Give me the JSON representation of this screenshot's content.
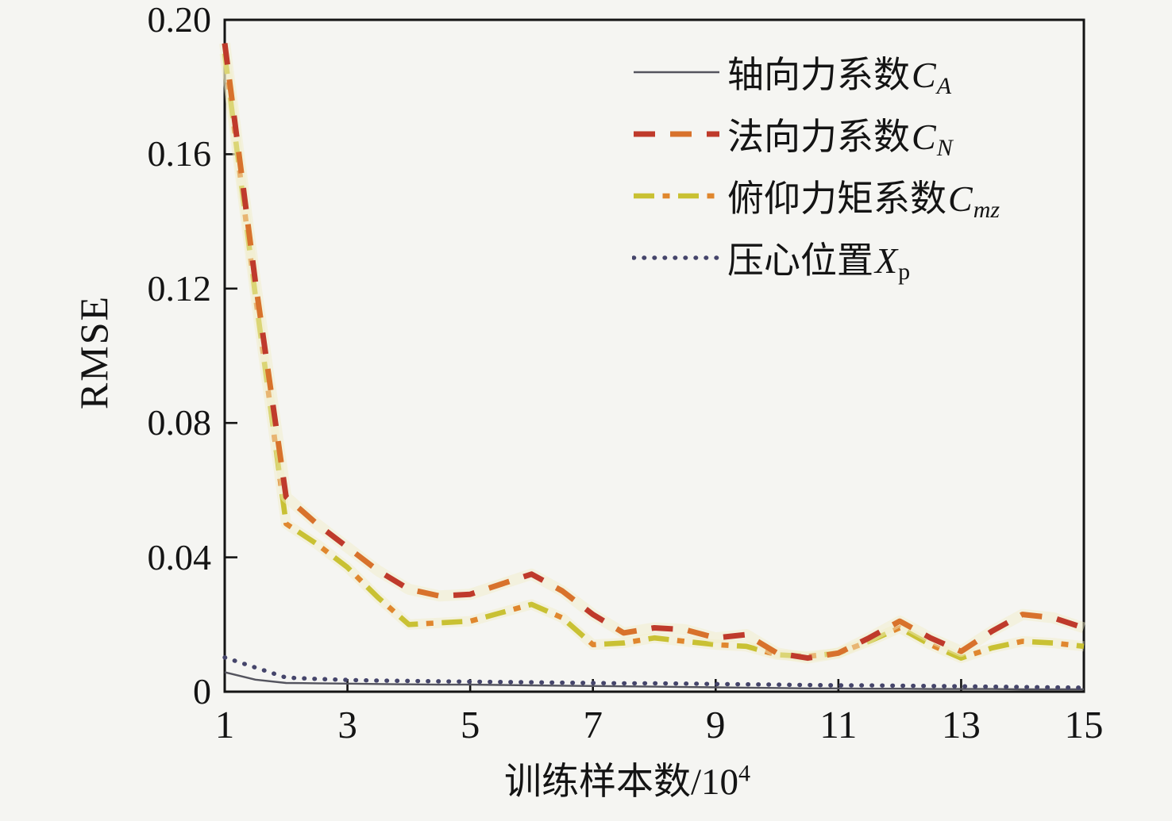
{
  "figure": {
    "background": "#f5f5f2",
    "ylabel": "RMSE",
    "xlabel_main": "训练样本数/10",
    "xlabel_sup": "4"
  },
  "legend": {
    "items": [
      {
        "label": "轴向力系数",
        "var": "C",
        "sub": "A",
        "line_style": "solid",
        "color": "#54545e"
      },
      {
        "label": "法向力系数",
        "var": "C",
        "sub": "N",
        "line_style": "dashed",
        "color": "#bf3a2b"
      },
      {
        "label": "俯仰力矩系数",
        "var": "C",
        "sub": "mz",
        "line_style": "dashdot",
        "color": "#c9c133"
      },
      {
        "label": "压心位置",
        "var": "X",
        "sub": "p",
        "line_style": "dotted",
        "color": "#45456b"
      }
    ]
  },
  "chart_data": {
    "type": "line",
    "title": "",
    "xlabel": "训练样本数/10^4",
    "ylabel": "RMSE",
    "xlim": [
      1,
      15
    ],
    "ylim": [
      0,
      0.2
    ],
    "grid": false,
    "legend_position": "upper right inside",
    "x_ticks": {
      "labels": [
        "1",
        "3",
        "5",
        "7",
        "9",
        "11",
        "13",
        "15"
      ],
      "values": [
        1,
        3,
        5,
        7,
        9,
        11,
        13,
        15
      ]
    },
    "y_ticks": {
      "labels": [
        "0.20",
        "0.16",
        "0.12",
        "0.08",
        "0.04",
        "0"
      ],
      "values": [
        0.2,
        0.16,
        0.12,
        0.08,
        0.04,
        0
      ]
    },
    "x": [
      1,
      1.5,
      2,
      2.5,
      3,
      3.5,
      4,
      4.5,
      5,
      5.5,
      6,
      6.5,
      7,
      7.5,
      8,
      8.5,
      9,
      9.5,
      10,
      10.5,
      11,
      11.5,
      12,
      12.5,
      13,
      13.5,
      14,
      14.5,
      15
    ],
    "series": [
      {
        "name": "轴向力系数C_A",
        "line_style": "solid",
        "color": "#54545e",
        "color2": "#54545e",
        "values": [
          0.0058,
          0.0036,
          0.0026,
          0.0025,
          0.0024,
          0.0023,
          0.0022,
          0.0021,
          0.0021,
          0.002,
          0.0019,
          0.0018,
          0.0017,
          0.0016,
          0.0015,
          0.0014,
          0.0013,
          0.0012,
          0.0011,
          0.001,
          0.001,
          0.0009,
          0.0009,
          0.0008,
          0.0008,
          0.0008,
          0.0007,
          0.0007,
          0.0007
        ]
      },
      {
        "name": "法向力系数C_N",
        "line_style": "dashed",
        "color": "#bf3a2b",
        "color2": "#d8722c",
        "values": [
          0.193,
          0.122,
          0.058,
          0.05,
          0.043,
          0.036,
          0.0305,
          0.0285,
          0.029,
          0.032,
          0.035,
          0.03,
          0.023,
          0.0175,
          0.019,
          0.0185,
          0.016,
          0.017,
          0.0115,
          0.01,
          0.0115,
          0.016,
          0.021,
          0.016,
          0.012,
          0.018,
          0.023,
          0.022,
          0.019
        ]
      },
      {
        "name": "俯仰力矩系数C_mz",
        "line_style": "dashdot",
        "color": "#c9c133",
        "color2": "#e0872e",
        "values": [
          0.19,
          0.118,
          0.05,
          0.044,
          0.037,
          0.028,
          0.02,
          0.0205,
          0.021,
          0.0235,
          0.026,
          0.022,
          0.014,
          0.0145,
          0.016,
          0.015,
          0.014,
          0.0135,
          0.011,
          0.0105,
          0.0115,
          0.015,
          0.019,
          0.014,
          0.01,
          0.013,
          0.015,
          0.0145,
          0.0135
        ]
      },
      {
        "name": "压心位置X_p",
        "line_style": "dotted",
        "color": "#45456b",
        "color2": "#45456b",
        "values": [
          0.0102,
          0.0072,
          0.0042,
          0.0038,
          0.0035,
          0.0033,
          0.0032,
          0.0031,
          0.003,
          0.0029,
          0.0028,
          0.0027,
          0.0026,
          0.0025,
          0.0025,
          0.0024,
          0.0023,
          0.0022,
          0.0021,
          0.002,
          0.0019,
          0.0019,
          0.0018,
          0.0017,
          0.0016,
          0.0015,
          0.0014,
          0.0013,
          0.0012
        ]
      }
    ]
  }
}
